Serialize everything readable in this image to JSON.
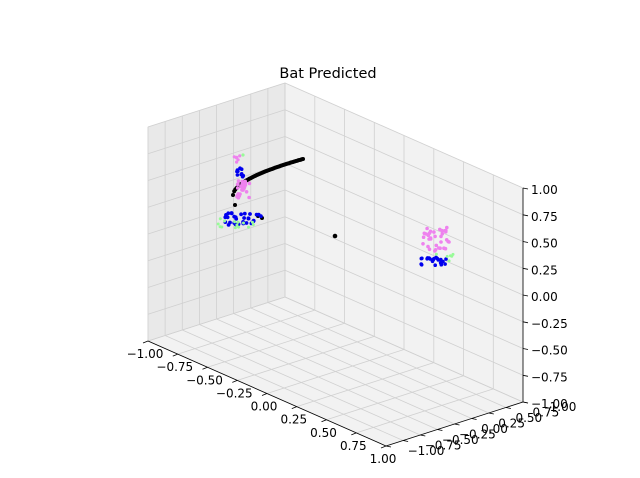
{
  "figure": {
    "title": "Bat Predicted"
  },
  "chart_data": {
    "type": "scatter",
    "projection": "3d",
    "title": "Bat Predicted",
    "xlabel": "",
    "ylabel": "",
    "zlabel": "",
    "xlim": [
      -1.0,
      1.0
    ],
    "ylim": [
      -1.0,
      1.0
    ],
    "zlim": [
      -1.0,
      1.0
    ],
    "x_ticks": [
      "−1.00",
      "−0.75",
      "−0.50",
      "−0.25",
      "0.00",
      "0.25",
      "0.50",
      "0.75",
      "1.00"
    ],
    "y_ticks": [
      "−1.00",
      "−0.75",
      "−0.50",
      "−0.25",
      "0.00",
      "0.25",
      "0.50",
      "0.75",
      "1.00"
    ],
    "z_ticks": [
      "−1.00",
      "−0.75",
      "−0.50",
      "−0.25",
      "0.00",
      "0.25",
      "0.50",
      "0.75",
      "1.00"
    ],
    "grid": true,
    "legend": "none",
    "colors": {
      "black": "#000000",
      "blue": "#0000ee",
      "violet": "#ee82ee",
      "palegreen": "#98fb98",
      "pane": "#f2f2f2",
      "grid": "#d0d0d0"
    }
  }
}
